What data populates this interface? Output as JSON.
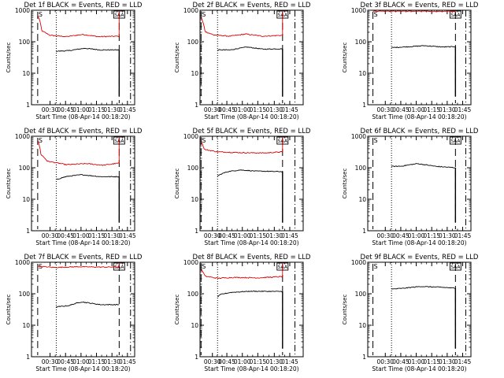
{
  "figure": {
    "colors": {
      "events": "#000000",
      "lld": "#dd0000",
      "axes": "#000000"
    }
  },
  "chart_data": [
    {
      "type": "line",
      "title": "Det 1f  BLACK = Events, RED = LLD",
      "xlabel": "Start Time (08-Apr-14 00:18:20)",
      "ylabel": "Counts/sec",
      "yscale": "log",
      "ylim": [
        1,
        1000
      ],
      "xticks": [
        {
          "x": 0.18,
          "label": "00:30"
        },
        {
          "x": 0.33,
          "label": "00:45"
        },
        {
          "x": 0.48,
          "label": "01:00"
        },
        {
          "x": 0.63,
          "label": "01:15"
        },
        {
          "x": 0.78,
          "label": "01:30"
        },
        {
          "x": 0.93,
          "label": "01:45"
        }
      ],
      "yticks": [
        {
          "v": 1,
          "label": "1"
        },
        {
          "v": 10,
          "label": "10"
        },
        {
          "v": 100,
          "label": "100"
        },
        {
          "v": 1000,
          "label": "1000"
        }
      ],
      "markers": {
        "saa_left": 0.06,
        "dotted": 0.24,
        "dash_right": 0.85,
        "dashdot": 0.96,
        "saa_label": "S",
        "saa_box_label": "SAA"
      },
      "series": [
        {
          "role": "lld",
          "x0": 0.06,
          "x1": 0.85,
          "edge_top": true,
          "points": [
            [
              0.0,
              700
            ],
            [
              0.05,
              220
            ],
            [
              0.15,
              160
            ],
            [
              0.35,
              145
            ],
            [
              0.55,
              170
            ],
            [
              0.75,
              145
            ],
            [
              1.0,
              150
            ]
          ]
        },
        {
          "role": "events",
          "x0": 0.24,
          "x1": 0.85,
          "drop_end": true,
          "points": [
            [
              0.0,
              50
            ],
            [
              0.2,
              52
            ],
            [
              0.45,
              62
            ],
            [
              0.7,
              55
            ],
            [
              1.0,
              55
            ]
          ]
        }
      ]
    },
    {
      "type": "line",
      "title": "Det 2f  BLACK = Events, RED = LLD",
      "xlabel": "Start Time (08-Apr-14 00:18:20)",
      "ylabel": "Counts/sec",
      "yscale": "log",
      "ylim": [
        1,
        1000
      ],
      "xticks": [
        {
          "x": 0.12,
          "label": "00:30"
        },
        {
          "x": 0.26,
          "label": "00:45"
        },
        {
          "x": 0.41,
          "label": "01:00"
        },
        {
          "x": 0.56,
          "label": "01:15"
        },
        {
          "x": 0.72,
          "label": "01:30"
        },
        {
          "x": 0.87,
          "label": "01:45"
        }
      ],
      "yticks": [
        {
          "v": 1,
          "label": "1"
        },
        {
          "v": 10,
          "label": "10"
        },
        {
          "v": 100,
          "label": "100"
        },
        {
          "v": 1000,
          "label": "1000"
        }
      ],
      "markers": {
        "saa_left": 0.01,
        "dotted": 0.17,
        "dash_right": 0.8,
        "dashdot": 0.92,
        "saa_label": "S",
        "saa_box_label": "SAA"
      },
      "series": [
        {
          "role": "lld",
          "x0": 0.01,
          "x1": 0.8,
          "edge_top": true,
          "points": [
            [
              0.0,
              600
            ],
            [
              0.05,
              210
            ],
            [
              0.15,
              165
            ],
            [
              0.35,
              150
            ],
            [
              0.55,
              175
            ],
            [
              0.75,
              150
            ],
            [
              1.0,
              160
            ]
          ]
        },
        {
          "role": "events",
          "x0": 0.17,
          "x1": 0.8,
          "drop_end": true,
          "points": [
            [
              0.0,
              55
            ],
            [
              0.2,
              55
            ],
            [
              0.45,
              68
            ],
            [
              0.7,
              58
            ],
            [
              1.0,
              60
            ]
          ]
        }
      ]
    },
    {
      "type": "line",
      "title": "Det 3f  BLACK = Events, RED = LLD",
      "xlabel": "Start Time (08-Apr-14 00:18:20)",
      "ylabel": "Counts/sec",
      "yscale": "log",
      "ylim": [
        1,
        1000
      ],
      "xticks": [
        {
          "x": 0.17,
          "label": "00:30"
        },
        {
          "x": 0.32,
          "label": "00:45"
        },
        {
          "x": 0.47,
          "label": "01:00"
        },
        {
          "x": 0.62,
          "label": "01:15"
        },
        {
          "x": 0.77,
          "label": "01:30"
        },
        {
          "x": 0.92,
          "label": "01:45"
        }
      ],
      "yticks": [
        {
          "v": 1,
          "label": "1"
        },
        {
          "v": 10,
          "label": "10"
        },
        {
          "v": 100,
          "label": "100"
        },
        {
          "v": 1000,
          "label": "1000"
        }
      ],
      "markers": {
        "saa_left": 0.05,
        "dotted": 0.23,
        "dash_right": 0.85,
        "dashdot": 0.95,
        "saa_label": "S",
        "saa_box_label": "SAA"
      },
      "series": [
        {
          "role": "lld",
          "x0": 0.05,
          "x1": 0.85,
          "edge_top": false,
          "points": [
            [
              0.0,
              950
            ],
            [
              1.0,
              920
            ]
          ]
        },
        {
          "role": "events",
          "x0": 0.23,
          "x1": 0.85,
          "drop_end": true,
          "points": [
            [
              0.0,
              65
            ],
            [
              0.3,
              70
            ],
            [
              0.5,
              75
            ],
            [
              0.8,
              68
            ],
            [
              1.0,
              70
            ]
          ]
        }
      ]
    },
    {
      "type": "line",
      "title": "Det 4f  BLACK = Events, RED = LLD",
      "xlabel": "Start Time (08-Apr-14 00:18:20)",
      "ylabel": "Counts/sec",
      "yscale": "log",
      "ylim": [
        1,
        1000
      ],
      "xticks": [
        {
          "x": 0.18,
          "label": "00:30"
        },
        {
          "x": 0.33,
          "label": "00:45"
        },
        {
          "x": 0.48,
          "label": "01:00"
        },
        {
          "x": 0.63,
          "label": "01:15"
        },
        {
          "x": 0.78,
          "label": "01:30"
        },
        {
          "x": 0.93,
          "label": "01:45"
        }
      ],
      "yticks": [
        {
          "v": 1,
          "label": "1"
        },
        {
          "v": 10,
          "label": "10"
        },
        {
          "v": 100,
          "label": "100"
        },
        {
          "v": 1000,
          "label": "1000"
        }
      ],
      "markers": {
        "saa_left": 0.06,
        "dotted": 0.24,
        "dash_right": 0.85,
        "dashdot": 0.96,
        "saa_label": "S",
        "saa_box_label": "SAA"
      },
      "series": [
        {
          "role": "lld",
          "x0": 0.06,
          "x1": 0.85,
          "edge_top": true,
          "points": [
            [
              0.0,
              750
            ],
            [
              0.04,
              260
            ],
            [
              0.12,
              160
            ],
            [
              0.35,
              125
            ],
            [
              0.6,
              135
            ],
            [
              0.8,
              120
            ],
            [
              1.0,
              140
            ]
          ]
        },
        {
          "role": "events",
          "x0": 0.24,
          "x1": 0.85,
          "drop_end": true,
          "points": [
            [
              0.0,
              42
            ],
            [
              0.15,
              52
            ],
            [
              0.4,
              60
            ],
            [
              0.7,
              52
            ],
            [
              1.0,
              52
            ]
          ]
        }
      ]
    },
    {
      "type": "line",
      "title": "Det 5f  BLACK = Events, RED = LLD",
      "xlabel": "Start Time (08-Apr-14 00:18:20)",
      "ylabel": "Counts/sec",
      "yscale": "log",
      "ylim": [
        1,
        1000
      ],
      "xticks": [
        {
          "x": 0.12,
          "label": "00:30"
        },
        {
          "x": 0.26,
          "label": "00:45"
        },
        {
          "x": 0.41,
          "label": "01:00"
        },
        {
          "x": 0.56,
          "label": "01:15"
        },
        {
          "x": 0.72,
          "label": "01:30"
        },
        {
          "x": 0.87,
          "label": "01:45"
        }
      ],
      "yticks": [
        {
          "v": 1,
          "label": "1"
        },
        {
          "v": 10,
          "label": "10"
        },
        {
          "v": 100,
          "label": "100"
        },
        {
          "v": 1000,
          "label": "1000"
        }
      ],
      "markers": {
        "saa_left": 0.01,
        "dotted": 0.17,
        "dash_right": 0.8,
        "dashdot": 0.92,
        "saa_label": "S",
        "saa_box_label": "SAA"
      },
      "series": [
        {
          "role": "lld",
          "x0": 0.01,
          "x1": 0.8,
          "edge_top": true,
          "points": [
            [
              0.0,
              700
            ],
            [
              0.04,
              380
            ],
            [
              0.2,
              320
            ],
            [
              0.5,
              300
            ],
            [
              0.8,
              295
            ],
            [
              1.0,
              320
            ]
          ]
        },
        {
          "role": "events",
          "x0": 0.17,
          "x1": 0.8,
          "drop_end": true,
          "points": [
            [
              0.0,
              55
            ],
            [
              0.05,
              62
            ],
            [
              0.15,
              75
            ],
            [
              0.35,
              85
            ],
            [
              0.6,
              78
            ],
            [
              1.0,
              75
            ]
          ]
        }
      ]
    },
    {
      "type": "line",
      "title": "Det 6f  BLACK = Events, RED = LLD",
      "xlabel": "Start Time (08-Apr-14 00:18:20)",
      "ylabel": "Counts/sec",
      "yscale": "log",
      "ylim": [
        1,
        1000
      ],
      "xticks": [
        {
          "x": 0.17,
          "label": "00:30"
        },
        {
          "x": 0.32,
          "label": "00:45"
        },
        {
          "x": 0.47,
          "label": "01:00"
        },
        {
          "x": 0.62,
          "label": "01:15"
        },
        {
          "x": 0.77,
          "label": "01:30"
        },
        {
          "x": 0.92,
          "label": "01:45"
        }
      ],
      "yticks": [
        {
          "v": 1,
          "label": "1"
        },
        {
          "v": 10,
          "label": "10"
        },
        {
          "v": 100,
          "label": "100"
        },
        {
          "v": 1000,
          "label": "1000"
        }
      ],
      "markers": {
        "saa_left": 0.05,
        "dotted": 0.23,
        "dash_right": 0.85,
        "dashdot": 0.95,
        "saa_label": "S",
        "saa_box_label": "SAA"
      },
      "series": [
        {
          "role": "events",
          "x0": 0.23,
          "x1": 0.85,
          "drop_end": true,
          "points": [
            [
              0.0,
              110
            ],
            [
              0.15,
              112
            ],
            [
              0.4,
              135
            ],
            [
              0.7,
              110
            ],
            [
              1.0,
              100
            ]
          ]
        }
      ]
    },
    {
      "type": "line",
      "title": "Det 7f  BLACK = Events, RED = LLD",
      "xlabel": "Start Time (08-Apr-14 00:18:20)",
      "ylabel": "Counts/sec",
      "yscale": "log",
      "ylim": [
        1,
        1000
      ],
      "xticks": [
        {
          "x": 0.18,
          "label": "00:30"
        },
        {
          "x": 0.33,
          "label": "00:45"
        },
        {
          "x": 0.48,
          "label": "01:00"
        },
        {
          "x": 0.63,
          "label": "01:15"
        },
        {
          "x": 0.78,
          "label": "01:30"
        },
        {
          "x": 0.93,
          "label": "01:45"
        }
      ],
      "yticks": [
        {
          "v": 1,
          "label": "1"
        },
        {
          "v": 10,
          "label": "10"
        },
        {
          "v": 100,
          "label": "100"
        },
        {
          "v": 1000,
          "label": "1000"
        }
      ],
      "markers": {
        "saa_left": 0.06,
        "dotted": 0.24,
        "dash_right": 0.85,
        "dashdot": 0.96,
        "saa_label": "S",
        "saa_box_label": "SAA"
      },
      "series": [
        {
          "role": "lld",
          "x0": 0.06,
          "x1": 0.85,
          "edge_top": true,
          "points": [
            [
              0.0,
              750
            ],
            [
              0.2,
              680
            ],
            [
              0.5,
              720
            ],
            [
              0.8,
              700
            ],
            [
              1.0,
              710
            ]
          ]
        },
        {
          "role": "events",
          "x0": 0.24,
          "x1": 0.85,
          "drop_end": false,
          "points": [
            [
              0.0,
              38
            ],
            [
              0.2,
              42
            ],
            [
              0.4,
              55
            ],
            [
              0.7,
              45
            ],
            [
              1.0,
              45
            ]
          ]
        }
      ]
    },
    {
      "type": "line",
      "title": "Det 8f  BLACK = Events, RED = LLD",
      "xlabel": "Start Time (08-Apr-14 00:18:20)",
      "ylabel": "Counts/sec",
      "yscale": "log",
      "ylim": [
        1,
        1000
      ],
      "xticks": [
        {
          "x": 0.12,
          "label": "00:30"
        },
        {
          "x": 0.26,
          "label": "00:45"
        },
        {
          "x": 0.41,
          "label": "01:00"
        },
        {
          "x": 0.56,
          "label": "01:15"
        },
        {
          "x": 0.72,
          "label": "01:30"
        },
        {
          "x": 0.87,
          "label": "01:45"
        }
      ],
      "yticks": [
        {
          "v": 1,
          "label": "1"
        },
        {
          "v": 10,
          "label": "10"
        },
        {
          "v": 100,
          "label": "100"
        },
        {
          "v": 1000,
          "label": "1000"
        }
      ],
      "markers": {
        "saa_left": 0.01,
        "dotted": 0.17,
        "dash_right": 0.8,
        "dashdot": 0.92,
        "saa_label": "S",
        "saa_box_label": "SAA"
      },
      "series": [
        {
          "role": "lld",
          "x0": 0.01,
          "x1": 0.8,
          "edge_top": true,
          "points": [
            [
              0.0,
              600
            ],
            [
              0.05,
              360
            ],
            [
              0.2,
              310
            ],
            [
              0.4,
              330
            ],
            [
              0.7,
              320
            ],
            [
              1.0,
              350
            ]
          ]
        },
        {
          "role": "events",
          "x0": 0.17,
          "x1": 0.8,
          "drop_end": true,
          "points": [
            [
              0.0,
              80
            ],
            [
              0.05,
              95
            ],
            [
              0.2,
              110
            ],
            [
              0.5,
              120
            ],
            [
              1.0,
              118
            ]
          ]
        }
      ]
    },
    {
      "type": "line",
      "title": "Det 9f  BLACK = Events, RED = LLD",
      "xlabel": "Start Time (08-Apr-14 00:18:20)",
      "ylabel": "Counts/sec",
      "yscale": "log",
      "ylim": [
        1,
        1000
      ],
      "xticks": [
        {
          "x": 0.17,
          "label": "00:30"
        },
        {
          "x": 0.32,
          "label": "00:45"
        },
        {
          "x": 0.47,
          "label": "01:00"
        },
        {
          "x": 0.62,
          "label": "01:15"
        },
        {
          "x": 0.77,
          "label": "01:30"
        },
        {
          "x": 0.92,
          "label": "01:45"
        }
      ],
      "yticks": [
        {
          "v": 1,
          "label": "1"
        },
        {
          "v": 10,
          "label": "10"
        },
        {
          "v": 100,
          "label": "100"
        },
        {
          "v": 1000,
          "label": "1000"
        }
      ],
      "markers": {
        "saa_left": 0.05,
        "dotted": 0.23,
        "dash_right": 0.85,
        "dashdot": 0.95,
        "saa_label": "S",
        "saa_box_label": "SAA"
      },
      "series": [
        {
          "role": "events",
          "x0": 0.23,
          "x1": 0.85,
          "drop_end": true,
          "points": [
            [
              0.0,
              140
            ],
            [
              0.2,
              150
            ],
            [
              0.45,
              170
            ],
            [
              0.8,
              160
            ],
            [
              1.0,
              150
            ]
          ]
        }
      ]
    }
  ]
}
